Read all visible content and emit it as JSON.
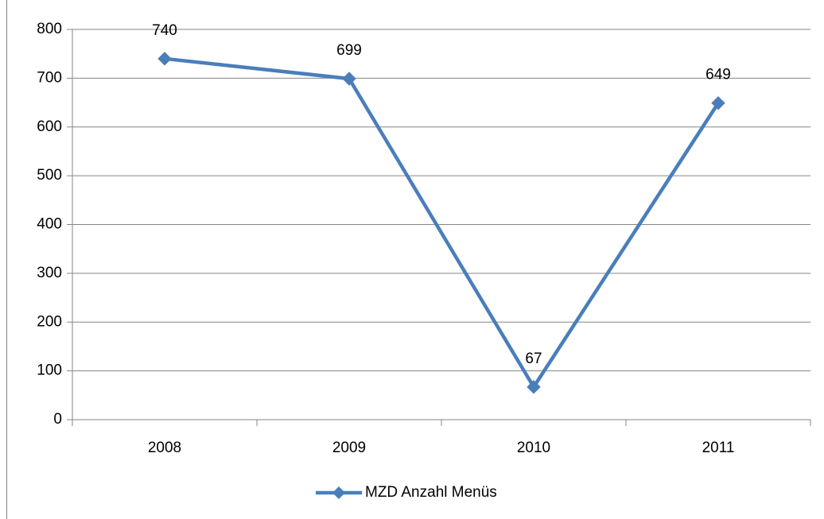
{
  "chart_data": {
    "type": "line",
    "categories": [
      "2008",
      "2009",
      "2010",
      "2011"
    ],
    "series": [
      {
        "name": "MZD Anzahl Menüs",
        "color": "#4a7ebb",
        "values": [
          740,
          699,
          67,
          649
        ]
      }
    ],
    "ylim": [
      0,
      800
    ],
    "yticks": [
      0,
      100,
      200,
      300,
      400,
      500,
      600,
      700,
      800
    ],
    "grid": true,
    "legend": "bottom",
    "data_labels": true
  }
}
